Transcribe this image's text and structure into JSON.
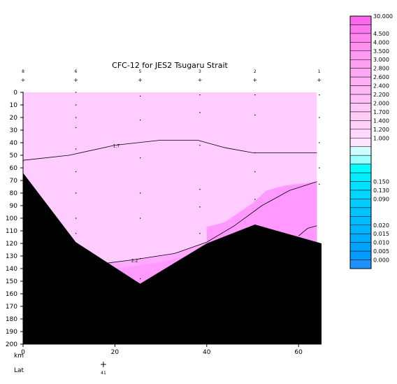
{
  "chart_data": {
    "type": "section",
    "title": "CFC-12 for JES2 Tsugaru Strait",
    "xlabel": "km",
    "xlim": [
      0,
      65
    ],
    "ylim": [
      0,
      200
    ],
    "x_ticks": [
      0,
      20,
      40,
      60
    ],
    "y_ticks": [
      0,
      10,
      20,
      30,
      40,
      50,
      60,
      70,
      80,
      90,
      100,
      110,
      120,
      130,
      140,
      150,
      160,
      170,
      180,
      190,
      200
    ],
    "lat_axis": {
      "label": "Lat",
      "ticks": [
        {
          "km": 17.5,
          "label": "41"
        }
      ]
    },
    "stations": [
      {
        "label": "8",
        "km": 0
      },
      {
        "label": "6",
        "km": 11.5
      },
      {
        "label": "5",
        "km": 25.5
      },
      {
        "label": "3",
        "km": 38.5
      },
      {
        "label": "2",
        "km": 50.5
      },
      {
        "label": "1",
        "km": 64.5
      }
    ],
    "contours": [
      {
        "label": "1.7",
        "points": [
          [
            0,
            54
          ],
          [
            10,
            50
          ],
          [
            20,
            42
          ],
          [
            30,
            38
          ],
          [
            38,
            38
          ],
          [
            44,
            44
          ],
          [
            50,
            48
          ],
          [
            64,
            48
          ]
        ]
      },
      {
        "label": "2.2",
        "points": [
          [
            17.5,
            136
          ],
          [
            24,
            133
          ],
          [
            33,
            128
          ],
          [
            40,
            119
          ],
          [
            46,
            106
          ],
          [
            52,
            90
          ],
          [
            58,
            78
          ],
          [
            64,
            71
          ]
        ]
      }
    ],
    "sample_points": [
      [
        0,
        0
      ],
      [
        0,
        10
      ],
      [
        0,
        20
      ],
      [
        0,
        30
      ],
      [
        0,
        40
      ],
      [
        0,
        55
      ],
      [
        11.5,
        0
      ],
      [
        11.5,
        10
      ],
      [
        11.5,
        20
      ],
      [
        11.5,
        28
      ],
      [
        11.5,
        45
      ],
      [
        11.5,
        63
      ],
      [
        11.5,
        80
      ],
      [
        11.5,
        100
      ],
      [
        11.5,
        112
      ],
      [
        25.5,
        3
      ],
      [
        25.5,
        22
      ],
      [
        25.5,
        52
      ],
      [
        25.5,
        80
      ],
      [
        25.5,
        100
      ],
      [
        25.5,
        132
      ],
      [
        25.5,
        148
      ],
      [
        38.5,
        2
      ],
      [
        38.5,
        16
      ],
      [
        38.5,
        42
      ],
      [
        38.5,
        77
      ],
      [
        38.5,
        91
      ],
      [
        38.5,
        112
      ],
      [
        50.5,
        2
      ],
      [
        50.5,
        18
      ],
      [
        50.5,
        48
      ],
      [
        50.5,
        63
      ],
      [
        50.5,
        85
      ],
      [
        64.5,
        2
      ],
      [
        64.5,
        20
      ],
      [
        64.5,
        40
      ],
      [
        64.5,
        60
      ],
      [
        64.5,
        73
      ]
    ],
    "colorbar": {
      "levels": [
        {
          "label": "30.000",
          "color": "#ff66ee"
        },
        {
          "label": "",
          "color": "#ff77ee"
        },
        {
          "label": "4.500",
          "color": "#ff88f0"
        },
        {
          "label": "4.000",
          "color": "#ff90f0"
        },
        {
          "label": "3.500",
          "color": "#ff99f2"
        },
        {
          "label": "3.000",
          "color": "#ffa0f3"
        },
        {
          "label": "2.800",
          "color": "#ffa8f4"
        },
        {
          "label": "2.600",
          "color": "#ffb0f5"
        },
        {
          "label": "2.400",
          "color": "#ffb8f6"
        },
        {
          "label": "2.200",
          "color": "#ffbff7"
        },
        {
          "label": "2.000",
          "color": "#ffc6f8"
        },
        {
          "label": "1.700",
          "color": "#ffccf9"
        },
        {
          "label": "1.400",
          "color": "#ffd2fa"
        },
        {
          "label": "1.200",
          "color": "#ffd8fb"
        },
        {
          "label": "1.000",
          "color": "#ffe4fd"
        },
        {
          "label": "",
          "color": "#ccffff"
        },
        {
          "label": "",
          "color": "#99ffff"
        },
        {
          "label": "",
          "color": "#00ffff"
        },
        {
          "label": "",
          "color": "#00eeff"
        },
        {
          "label": "0.150",
          "color": "#00e0ff"
        },
        {
          "label": "0.130",
          "color": "#00d6ff"
        },
        {
          "label": "0.090",
          "color": "#00ccff"
        },
        {
          "label": "",
          "color": "#00c4ff"
        },
        {
          "label": "",
          "color": "#00bcff"
        },
        {
          "label": "0.020",
          "color": "#00b4ff"
        },
        {
          "label": "0.015",
          "color": "#00acff"
        },
        {
          "label": "0.010",
          "color": "#00a4ff"
        },
        {
          "label": "0.005",
          "color": "#009cff"
        },
        {
          "label": "0.000",
          "color": "#1f90ff"
        }
      ]
    },
    "colors": {
      "upper_field": "#ffccff",
      "high_core": "#ff99ff",
      "mid_band": "#ffaaff",
      "seafloor": "#000000"
    }
  }
}
